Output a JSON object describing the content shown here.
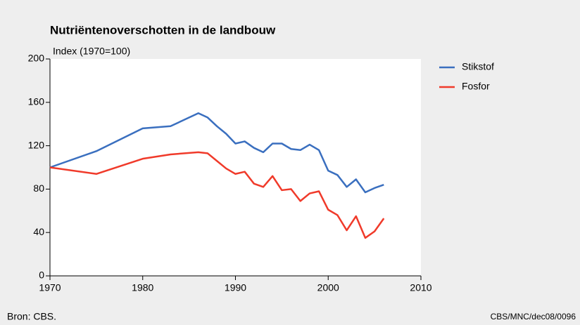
{
  "chart_data": {
    "type": "line",
    "title": "Nutriëntenoverschotten in de landbouw",
    "y_label": "Index (1970=100)",
    "source": "Bron: CBS.",
    "code": "CBS/MNC/dec08/0096",
    "x": [
      1970,
      1975,
      1980,
      1983,
      1986,
      1987,
      1988,
      1989,
      1990,
      1991,
      1992,
      1993,
      1994,
      1995,
      1996,
      1997,
      1998,
      1999,
      2000,
      2001,
      2002,
      2003,
      2004,
      2005,
      2006
    ],
    "series": [
      {
        "name": "Stikstof",
        "color": "#3a6fbf",
        "values": [
          100,
          115,
          136,
          138,
          150,
          146,
          138,
          131,
          122,
          124,
          118,
          114,
          122,
          122,
          117,
          116,
          121,
          116,
          97,
          93,
          82,
          89,
          77,
          81,
          84
        ]
      },
      {
        "name": "Fosfor",
        "color": "#f03a2a",
        "values": [
          100,
          94,
          108,
          112,
          114,
          113,
          106,
          99,
          94,
          96,
          85,
          82,
          92,
          79,
          80,
          69,
          76,
          78,
          61,
          56,
          42,
          55,
          35,
          41,
          53
        ]
      }
    ],
    "xlim": [
      1970,
      2010
    ],
    "xticks": [
      1970,
      1980,
      1990,
      2000,
      2010
    ],
    "ylim": [
      0,
      200
    ],
    "yticks": [
      0,
      40,
      80,
      120,
      160,
      200
    ],
    "legend": "right"
  }
}
